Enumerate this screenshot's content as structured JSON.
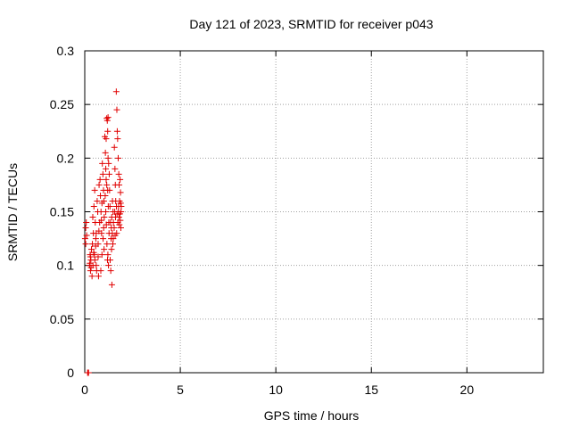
{
  "chart_data": {
    "type": "scatter",
    "title": "Day 121 of 2023, SRMTID for receiver p043",
    "xlabel": "GPS time / hours",
    "ylabel": "SRMTID / TECUs",
    "xlim": [
      0,
      24
    ],
    "ylim": [
      0,
      0.3
    ],
    "xticks": [
      0,
      5,
      10,
      15,
      20
    ],
    "xtick_labels": [
      "0",
      "5",
      "10",
      "15",
      "20"
    ],
    "yticks": [
      0,
      0.05,
      0.1,
      0.15,
      0.2,
      0.25,
      0.3
    ],
    "ytick_labels": [
      "0",
      "0.05",
      "0.1",
      "0.15",
      "0.2",
      "0.25",
      "0.3"
    ],
    "grid": true,
    "marker": "+",
    "colors": {
      "points": "#e00000",
      "grid": "#a0a0a0",
      "axes": "#000000"
    },
    "series": [
      {
        "name": "SRMTID",
        "points": [
          [
            0.02,
            0.125
          ],
          [
            0.05,
            0.135
          ],
          [
            0.08,
            0.14
          ],
          [
            0.1,
            0.128
          ],
          [
            0.05,
            0.12
          ],
          [
            0.15,
            0.0
          ],
          [
            0.2,
            0.0
          ],
          [
            0.18,
            0.0
          ],
          [
            0.25,
            0.1
          ],
          [
            0.28,
            0.11
          ],
          [
            0.3,
            0.095
          ],
          [
            0.32,
            0.105
          ],
          [
            0.35,
            0.115
          ],
          [
            0.27,
            0.102
          ],
          [
            0.3,
            0.108
          ],
          [
            0.33,
            0.098
          ],
          [
            0.38,
            0.09
          ],
          [
            0.4,
            0.12
          ],
          [
            0.42,
            0.145
          ],
          [
            0.45,
            0.13
          ],
          [
            0.48,
            0.155
          ],
          [
            0.5,
            0.11
          ],
          [
            0.43,
            0.1
          ],
          [
            0.47,
            0.112
          ],
          [
            0.52,
            0.17
          ],
          [
            0.55,
            0.14
          ],
          [
            0.58,
            0.125
          ],
          [
            0.6,
            0.1
          ],
          [
            0.62,
            0.095
          ],
          [
            0.57,
            0.118
          ],
          [
            0.53,
            0.105
          ],
          [
            0.6,
            0.13
          ],
          [
            0.65,
            0.16
          ],
          [
            0.68,
            0.15
          ],
          [
            0.7,
            0.12
          ],
          [
            0.72,
            0.09
          ],
          [
            0.75,
            0.175
          ],
          [
            0.78,
            0.14
          ],
          [
            0.7,
            0.108
          ],
          [
            0.74,
            0.132
          ],
          [
            0.8,
            0.18
          ],
          [
            0.82,
            0.165
          ],
          [
            0.85,
            0.15
          ],
          [
            0.88,
            0.13
          ],
          [
            0.9,
            0.11
          ],
          [
            0.84,
            0.095
          ],
          [
            0.87,
            0.142
          ],
          [
            0.9,
            0.158
          ],
          [
            0.92,
            0.195
          ],
          [
            0.95,
            0.185
          ],
          [
            0.98,
            0.17
          ],
          [
            1.0,
            0.16
          ],
          [
            1.02,
            0.145
          ],
          [
            0.96,
            0.125
          ],
          [
            0.99,
            0.135
          ],
          [
            1.01,
            0.115
          ],
          [
            1.05,
            0.22
          ],
          [
            1.08,
            0.205
          ],
          [
            1.1,
            0.19
          ],
          [
            1.12,
            0.18
          ],
          [
            1.15,
            0.175
          ],
          [
            1.07,
            0.165
          ],
          [
            1.1,
            0.15
          ],
          [
            1.13,
            0.138
          ],
          [
            1.18,
            0.235
          ],
          [
            1.2,
            0.225
          ],
          [
            1.22,
            0.2
          ],
          [
            1.25,
            0.195
          ],
          [
            1.28,
            0.185
          ],
          [
            1.2,
            0.17
          ],
          [
            1.23,
            0.155
          ],
          [
            1.26,
            0.14
          ],
          [
            1.15,
            0.237
          ],
          [
            1.22,
            0.238
          ],
          [
            1.12,
            0.218
          ],
          [
            1.16,
            0.12
          ],
          [
            1.21,
            0.11
          ],
          [
            1.24,
            0.1
          ],
          [
            1.19,
            0.105
          ],
          [
            1.27,
            0.13
          ],
          [
            1.3,
            0.17
          ],
          [
            1.32,
            0.155
          ],
          [
            1.35,
            0.14
          ],
          [
            1.38,
            0.125
          ],
          [
            1.4,
            0.115
          ],
          [
            1.33,
            0.105
          ],
          [
            1.36,
            0.095
          ],
          [
            1.39,
            0.135
          ],
          [
            1.42,
            0.082
          ],
          [
            1.45,
            0.16
          ],
          [
            1.48,
            0.15
          ],
          [
            1.5,
            0.14
          ],
          [
            1.44,
            0.13
          ],
          [
            1.47,
            0.12
          ],
          [
            1.41,
            0.145
          ],
          [
            1.49,
            0.125
          ],
          [
            1.55,
            0.21
          ],
          [
            1.58,
            0.19
          ],
          [
            1.6,
            0.175
          ],
          [
            1.62,
            0.16
          ],
          [
            1.57,
            0.15
          ],
          [
            1.61,
            0.145
          ],
          [
            1.54,
            0.135
          ],
          [
            1.59,
            0.128
          ],
          [
            1.65,
            0.262
          ],
          [
            1.68,
            0.245
          ],
          [
            1.7,
            0.225
          ],
          [
            1.72,
            0.218
          ],
          [
            1.66,
            0.155
          ],
          [
            1.69,
            0.148
          ],
          [
            1.73,
            0.14
          ],
          [
            1.67,
            0.13
          ],
          [
            1.75,
            0.2
          ],
          [
            1.78,
            0.185
          ],
          [
            1.8,
            0.175
          ],
          [
            1.82,
            0.16
          ],
          [
            1.76,
            0.15
          ],
          [
            1.79,
            0.145
          ],
          [
            1.81,
            0.138
          ],
          [
            1.77,
            0.155
          ],
          [
            1.85,
            0.18
          ],
          [
            1.88,
            0.158
          ],
          [
            1.9,
            0.15
          ],
          [
            1.86,
            0.142
          ],
          [
            1.89,
            0.135
          ],
          [
            1.84,
            0.148
          ],
          [
            1.87,
            0.168
          ],
          [
            1.91,
            0.155
          ]
        ]
      }
    ]
  }
}
